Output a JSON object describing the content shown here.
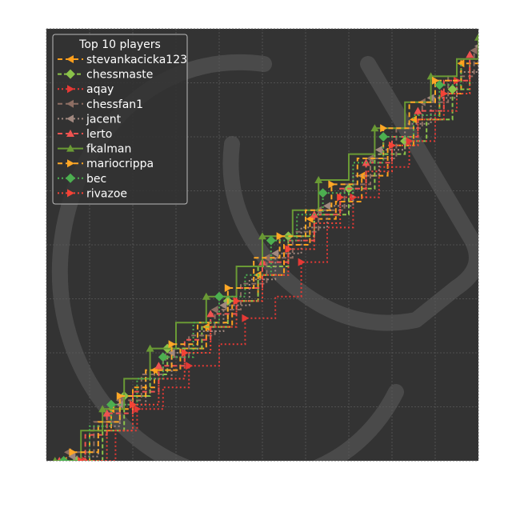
{
  "chart_data": {
    "type": "line",
    "title": "",
    "xlabel": "",
    "ylabel": "",
    "xlim": [
      0,
      100
    ],
    "ylim": [
      0,
      100
    ],
    "grid": true,
    "legend": {
      "title": "Top 10 players",
      "placement": "top-left"
    },
    "colors": {
      "background": "#333333",
      "grid": "#5a5a5a",
      "watermark": "#4a4a4a",
      "legend_frame": "#bbbbbb"
    },
    "series": [
      {
        "name": "stevankacicka123",
        "color": "#ff9f1c",
        "dash": "6,4",
        "marker": "triangle-left",
        "steps": [
          [
            4,
            0
          ],
          [
            10,
            7
          ],
          [
            15,
            12
          ],
          [
            20,
            17
          ],
          [
            25,
            21
          ],
          [
            31,
            26
          ],
          [
            37,
            31
          ],
          [
            43,
            37
          ],
          [
            49,
            43
          ],
          [
            55,
            50
          ],
          [
            61,
            56
          ],
          [
            67,
            60
          ],
          [
            73,
            66
          ],
          [
            79,
            73
          ],
          [
            85,
            79
          ],
          [
            91,
            85
          ],
          [
            96,
            92
          ],
          [
            100,
            95
          ]
        ]
      },
      {
        "name": "chessmaste",
        "color": "#8bc34a",
        "dash": "5,3",
        "marker": "diamond",
        "steps": [
          [
            7,
            0
          ],
          [
            13,
            7
          ],
          [
            18,
            15
          ],
          [
            24,
            20
          ],
          [
            28,
            26
          ],
          [
            36,
            31
          ],
          [
            42,
            37
          ],
          [
            49,
            45
          ],
          [
            56,
            52
          ],
          [
            62,
            57
          ],
          [
            70,
            63
          ],
          [
            76,
            71
          ],
          [
            83,
            74
          ],
          [
            88,
            79
          ],
          [
            94,
            86
          ],
          [
            98,
            92
          ]
        ]
      },
      {
        "name": "aqay",
        "color": "#e53935",
        "dash": "2,3",
        "marker": "triangle-right",
        "steps": [
          [
            9,
            0
          ],
          [
            16,
            7
          ],
          [
            21,
            12
          ],
          [
            27,
            17
          ],
          [
            33,
            22
          ],
          [
            40,
            27
          ],
          [
            46,
            33
          ],
          [
            53,
            38
          ],
          [
            59,
            46
          ],
          [
            65,
            54
          ],
          [
            71,
            61
          ],
          [
            77,
            68
          ],
          [
            84,
            74
          ],
          [
            90,
            81
          ],
          [
            95,
            88
          ],
          [
            98,
            92
          ]
        ]
      },
      {
        "name": "chessfan1",
        "color": "#8d6e63",
        "dash": "6,4",
        "marker": "triangle-left",
        "steps": [
          [
            5,
            2
          ],
          [
            11,
            9
          ],
          [
            17,
            14
          ],
          [
            22,
            20
          ],
          [
            27,
            24
          ],
          [
            33,
            29
          ],
          [
            39,
            35
          ],
          [
            45,
            41
          ],
          [
            51,
            47
          ],
          [
            57,
            53
          ],
          [
            63,
            58
          ],
          [
            69,
            64
          ],
          [
            75,
            70
          ],
          [
            81,
            77
          ],
          [
            87,
            83
          ],
          [
            93,
            89
          ],
          [
            99,
            95
          ]
        ]
      },
      {
        "name": "jacent",
        "color": "#a1887f",
        "dash": "2,3",
        "marker": "triangle-left",
        "steps": [
          [
            6,
            1
          ],
          [
            12,
            8
          ],
          [
            17,
            13
          ],
          [
            23,
            19
          ],
          [
            29,
            25
          ],
          [
            35,
            30
          ],
          [
            41,
            36
          ],
          [
            47,
            42
          ],
          [
            53,
            48
          ],
          [
            59,
            54
          ],
          [
            65,
            59
          ],
          [
            71,
            66
          ],
          [
            77,
            72
          ],
          [
            83,
            78
          ],
          [
            89,
            84
          ],
          [
            95,
            90
          ],
          [
            100,
            96
          ]
        ]
      },
      {
        "name": "lerto",
        "color": "#ef5350",
        "dash": "6,4",
        "marker": "triangle-up",
        "steps": [
          [
            3,
            0
          ],
          [
            9,
            6
          ],
          [
            14,
            11
          ],
          [
            20,
            16
          ],
          [
            26,
            22
          ],
          [
            32,
            28
          ],
          [
            38,
            34
          ],
          [
            44,
            40
          ],
          [
            50,
            46
          ],
          [
            56,
            51
          ],
          [
            62,
            57
          ],
          [
            68,
            63
          ],
          [
            74,
            69
          ],
          [
            80,
            75
          ],
          [
            86,
            81
          ],
          [
            92,
            88
          ],
          [
            98,
            94
          ]
        ]
      },
      {
        "name": "fkalman",
        "color": "#6a9a35",
        "dash": "",
        "marker": "triangle-up",
        "steps": [
          [
            2,
            0
          ],
          [
            8,
            7
          ],
          [
            13,
            12
          ],
          [
            18,
            19
          ],
          [
            24,
            26
          ],
          [
            30,
            32
          ],
          [
            37,
            38
          ],
          [
            44,
            45
          ],
          [
            50,
            52
          ],
          [
            57,
            58
          ],
          [
            63,
            65
          ],
          [
            70,
            71
          ],
          [
            76,
            77
          ],
          [
            83,
            83
          ],
          [
            89,
            89
          ],
          [
            95,
            93
          ],
          [
            100,
            98
          ]
        ]
      },
      {
        "name": "mariocrippa",
        "color": "#ffa726",
        "dash": "6,4",
        "marker": "triangle-right",
        "steps": [
          [
            6,
            2
          ],
          [
            12,
            9
          ],
          [
            17,
            15
          ],
          [
            23,
            21
          ],
          [
            29,
            27
          ],
          [
            35,
            32
          ],
          [
            42,
            40
          ],
          [
            48,
            47
          ],
          [
            54,
            52
          ],
          [
            60,
            58
          ],
          [
            66,
            64
          ],
          [
            72,
            70
          ],
          [
            78,
            77
          ],
          [
            84,
            83
          ],
          [
            90,
            88
          ],
          [
            96,
            93
          ]
        ]
      },
      {
        "name": "bec",
        "color": "#4caf50",
        "dash": "2,3",
        "marker": "diamond",
        "steps": [
          [
            4,
            0
          ],
          [
            10,
            8
          ],
          [
            15,
            13
          ],
          [
            21,
            19
          ],
          [
            27,
            24
          ],
          [
            34,
            32
          ],
          [
            40,
            38
          ],
          [
            46,
            43
          ],
          [
            52,
            51
          ],
          [
            58,
            57
          ],
          [
            64,
            62
          ],
          [
            71,
            69
          ],
          [
            78,
            75
          ],
          [
            85,
            80
          ],
          [
            91,
            87
          ],
          [
            96,
            92
          ]
        ]
      },
      {
        "name": "rivazoe",
        "color": "#f44336",
        "dash": "2,3",
        "marker": "triangle-right",
        "steps": [
          [
            8,
            0
          ],
          [
            14,
            7
          ],
          [
            20,
            13
          ],
          [
            26,
            19
          ],
          [
            32,
            25
          ],
          [
            38,
            31
          ],
          [
            44,
            37
          ],
          [
            50,
            43
          ],
          [
            56,
            49
          ],
          [
            62,
            55
          ],
          [
            68,
            61
          ],
          [
            74,
            67
          ],
          [
            80,
            73
          ],
          [
            86,
            79
          ],
          [
            92,
            85
          ],
          [
            98,
            91
          ]
        ]
      }
    ]
  }
}
